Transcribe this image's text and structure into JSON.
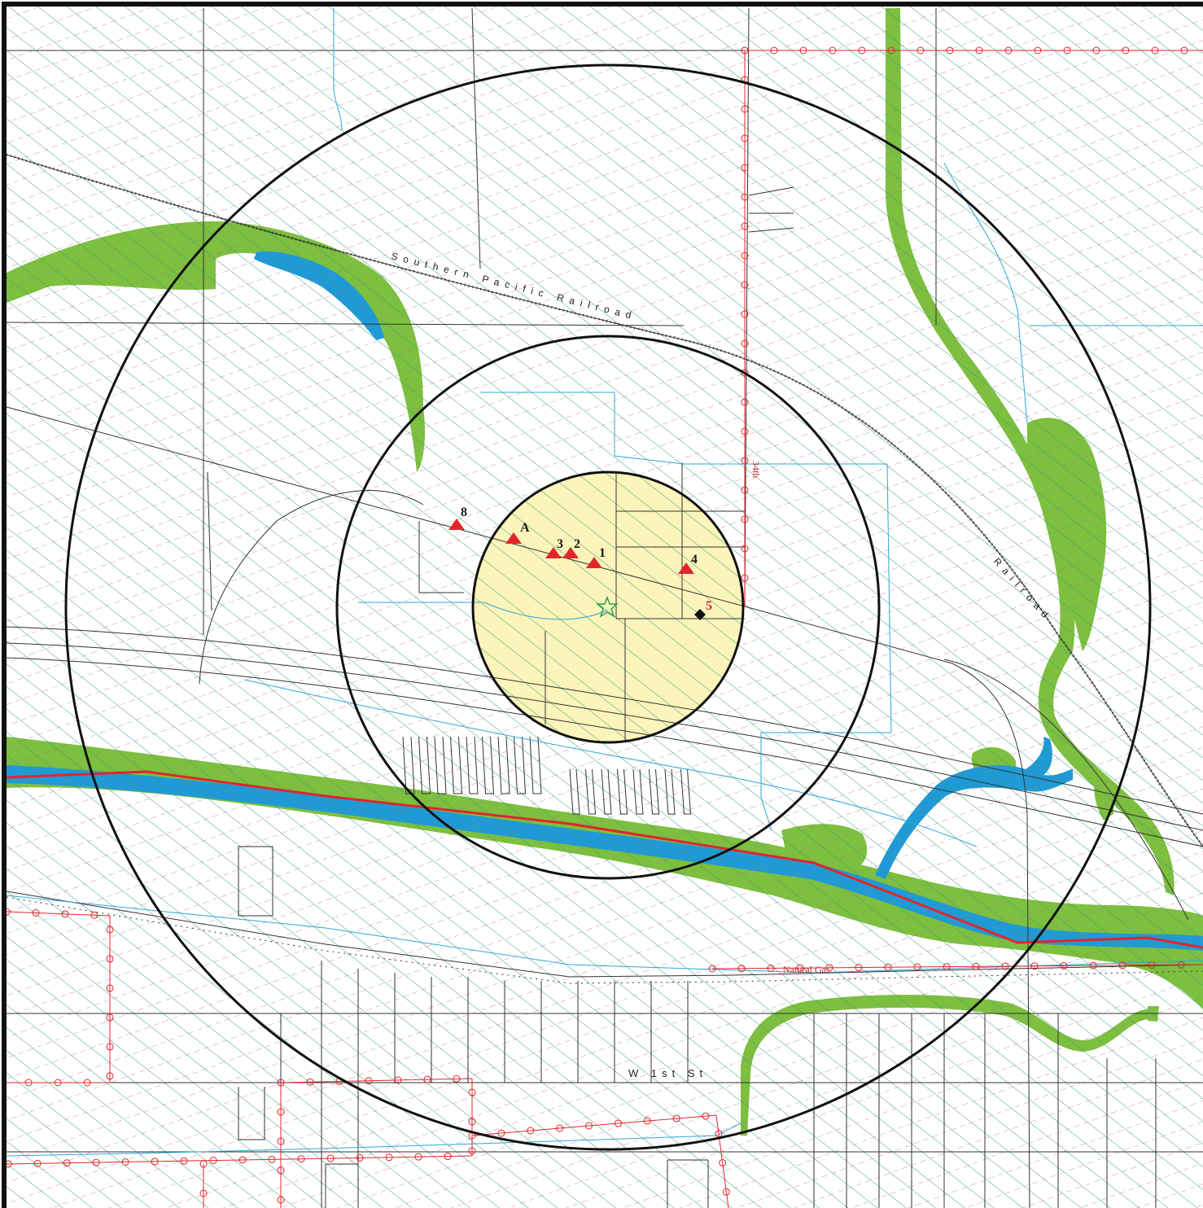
{
  "map": {
    "colors": {
      "hatch_green": "#3aa36b",
      "hatch_purple": "#b06aa8",
      "wetland": "#7dbf3f",
      "water": "#1f9ad6",
      "river_line": "#e0262b",
      "pipeline": "#e0262b",
      "buffer_fill": "#fbf3b4",
      "ring": "#111111",
      "site_star": "#2e9d55",
      "marker": "#e0262b"
    },
    "labels": {
      "street_w1st": "W 1st St",
      "railroad_south": "Southern Pacific Railroad",
      "railroad_east": "Railroad",
      "road_ne": "34th",
      "gas_line": "Natural Gas"
    },
    "markers": [
      {
        "id": "1",
        "symbol": "triangle"
      },
      {
        "id": "2",
        "symbol": "triangle"
      },
      {
        "id": "3",
        "symbol": "triangle"
      },
      {
        "id": "4",
        "symbol": "triangle"
      },
      {
        "id": "5",
        "symbol": "diamond"
      },
      {
        "id": "8",
        "symbol": "triangle"
      },
      {
        "id": "A",
        "symbol": "triangle"
      }
    ],
    "site_symbol": "star-icon"
  }
}
